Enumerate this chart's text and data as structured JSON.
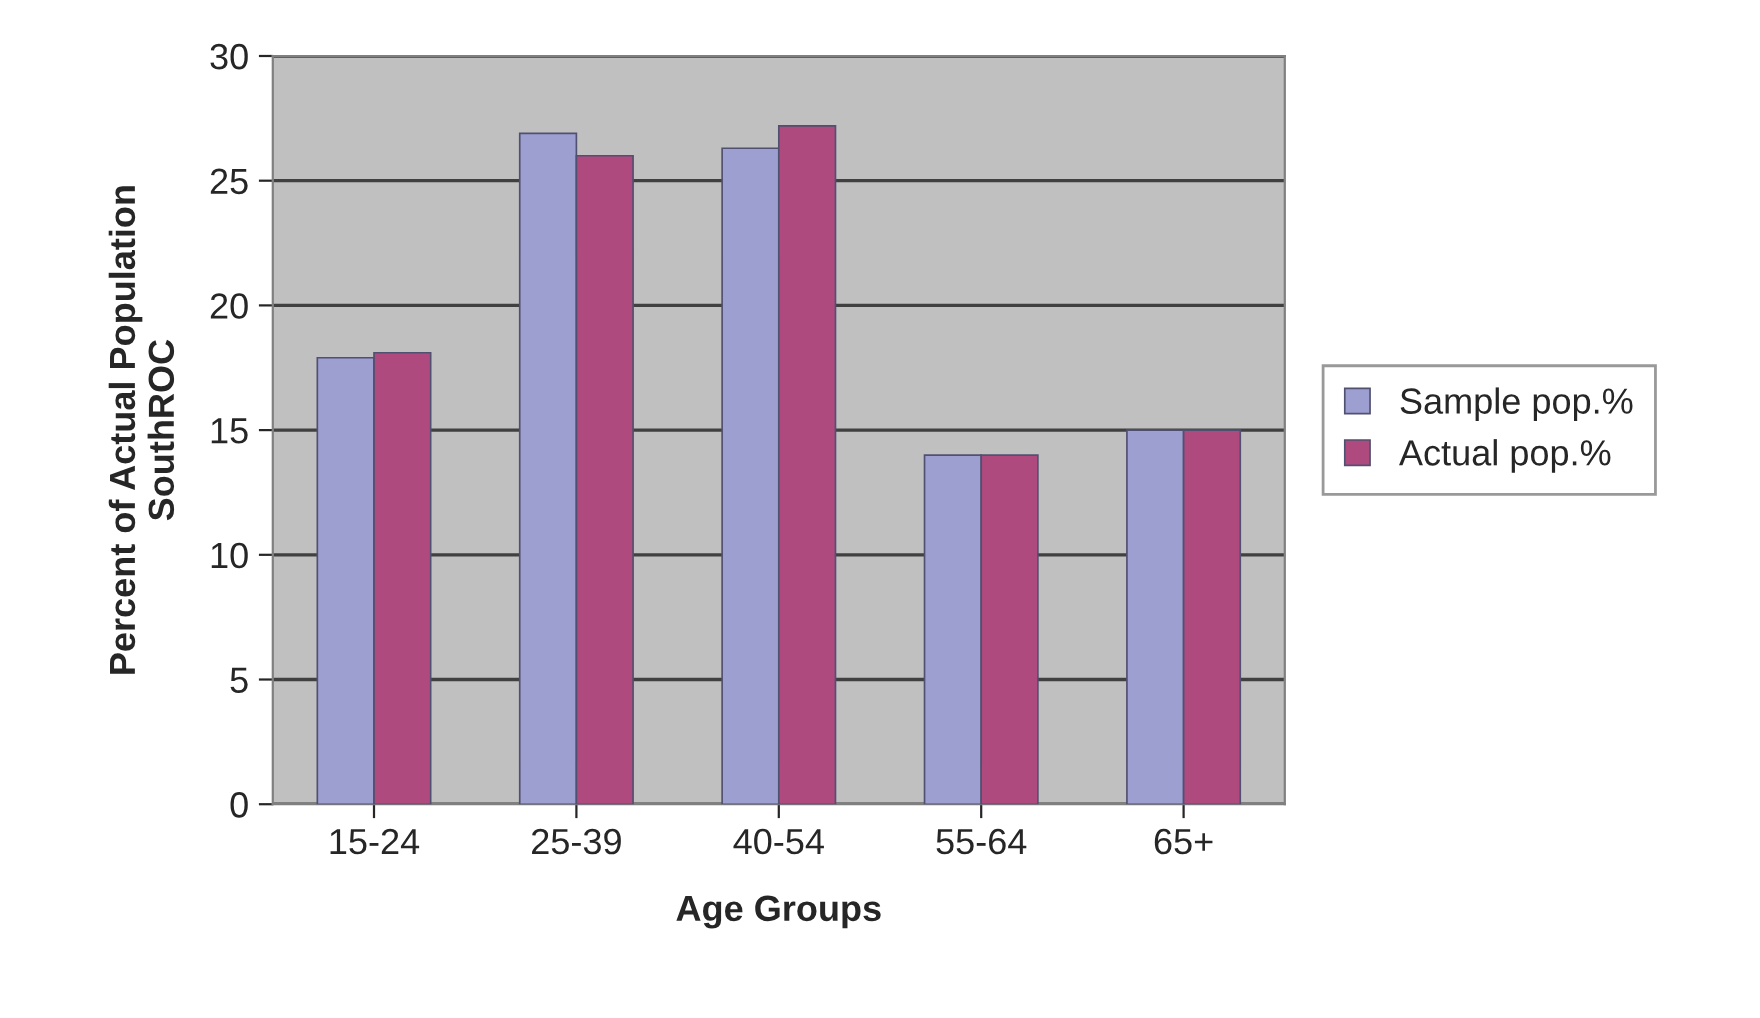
{
  "chart_data": {
    "type": "bar",
    "xlabel": "Age Groups",
    "ylabel": "Percent of Actual Population\nSouthROC",
    "categories": [
      "15-24",
      "25-39",
      "40-54",
      "55-64",
      "65+"
    ],
    "series": [
      {
        "name": "Sample pop.%",
        "color": "#9c9fd0",
        "values": [
          17.9,
          26.9,
          26.3,
          14.0,
          15.0
        ]
      },
      {
        "name": "Actual pop.%",
        "color": "#ae4a7e",
        "values": [
          18.1,
          26.0,
          27.2,
          14.0,
          15.0
        ]
      }
    ],
    "ylim": [
      0,
      30
    ],
    "yticks": [
      0,
      5,
      10,
      15,
      20,
      25,
      30
    ],
    "grid": "y",
    "legend": "right"
  }
}
